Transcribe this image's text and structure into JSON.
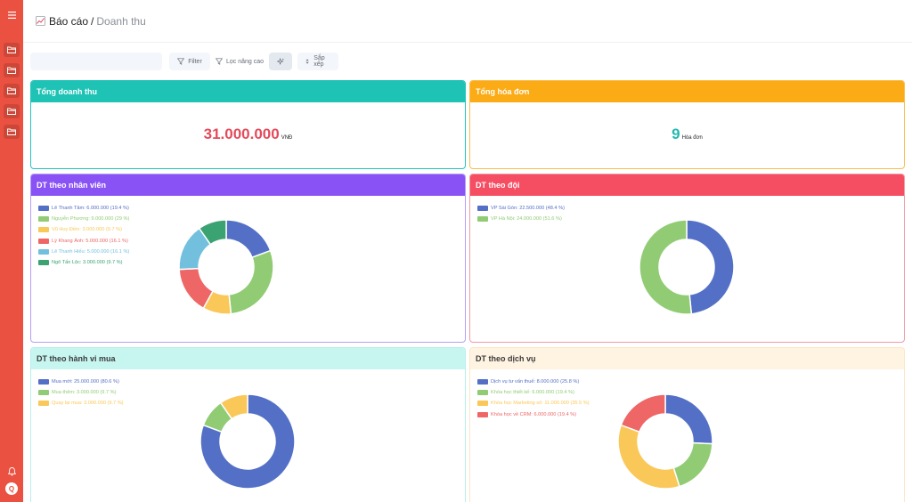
{
  "header": {
    "breadcrumb_root": "Báo cáo",
    "breadcrumb_sep": "/",
    "breadcrumb_current": "Doanh thu"
  },
  "toolbar": {
    "search_value": "",
    "search_placeholder": "",
    "filter_label": "Filter",
    "advanced_filter_label": "Lọc nâng cao",
    "sort_label": "Sắp xếp"
  },
  "sidebar": {
    "folder_count": 5,
    "avatar_letter": "Q"
  },
  "cards": {
    "total_revenue": {
      "title": "Tổng doanh thu",
      "value": "31.000.000",
      "unit": "VNĐ"
    },
    "total_invoices": {
      "title": "Tổng hóa đơn",
      "value": "9",
      "unit": "Hóa đơn"
    },
    "by_staff": {
      "title": "DT theo nhân viên"
    },
    "by_team": {
      "title": "DT theo đội"
    },
    "by_behavior": {
      "title": "DT theo hành vi mua"
    },
    "by_service": {
      "title": "DT theo dịch vụ"
    }
  },
  "colors": {
    "sidebar": "#ea5141",
    "teal": "#1fc3b5",
    "orange": "#fbab15",
    "purple": "#8952f5",
    "red": "#f54d62"
  },
  "chart_data": [
    {
      "id": "by_staff",
      "type": "pie",
      "categories": [
        "Lê Thanh Tâm",
        "Nguyễn Phương",
        "Vũ Huy Điền",
        "Lý Khang Ánh",
        "Lê Thanh Hiếu",
        "Ngô Tấn Lộc"
      ],
      "values": [
        6000000,
        9000000,
        3000000,
        5000000,
        5000000,
        3000000
      ],
      "labels": [
        "Lê Thanh Tâm: 6.000.000 (19.4 %)",
        "Nguyễn Phương: 9.000.000 (29 %)",
        "Vũ Huy Điền: 3.000.000 (9.7 %)",
        "Lý Khang Ánh: 5.000.000 (16.1 %)",
        "Lê Thanh Hiếu: 5.000.000 (16.1 %)",
        "Ngô Tấn Lộc: 3.000.000 (9.7 %)"
      ],
      "colors": [
        "#5470c6",
        "#91cc75",
        "#fac858",
        "#ee6666",
        "#73c0de",
        "#3ba272"
      ],
      "legend_position": "top-left"
    },
    {
      "id": "by_team",
      "type": "pie",
      "categories": [
        "VP Sài Gòn",
        "VP Hà Nội"
      ],
      "values": [
        22500000,
        24000000
      ],
      "labels": [
        "VP Sài Gòn: 22.500.000 (48.4 %)",
        "VP Hà Nội: 24.000.000 (51.6 %)"
      ],
      "colors": [
        "#5470c6",
        "#91cc75"
      ],
      "legend_position": "top-left"
    },
    {
      "id": "by_behavior",
      "type": "pie",
      "categories": [
        "Mua mới",
        "Mua thêm",
        "Quay lại mua"
      ],
      "values": [
        25000000,
        3000000,
        3000000
      ],
      "labels": [
        "Mua mới: 25.000.000 (80.6 %)",
        "Mua thêm: 3.000.000 (9.7 %)",
        "Quay lại mua: 3.000.000 (9.7 %)"
      ],
      "colors": [
        "#5470c6",
        "#91cc75",
        "#fac858"
      ],
      "legend_position": "top-left"
    },
    {
      "id": "by_service",
      "type": "pie",
      "categories": [
        "Dịch vụ tư vấn thuế",
        "Khóa học thiết kế",
        "Khóa học Marketing số",
        "Khóa học về CRM"
      ],
      "values": [
        8000000,
        6000000,
        11000000,
        6000000
      ],
      "labels": [
        "Dịch vụ tư vấn thuế: 8.000.000 (25.8 %)",
        "Khóa học thiết kế: 6.000.000 (19.4 %)",
        "Khóa học Marketing số: 11.000.000 (35.5 %)",
        "Khóa học về CRM: 6.000.000 (19.4 %)"
      ],
      "colors": [
        "#5470c6",
        "#91cc75",
        "#fac858",
        "#ee6666"
      ],
      "legend_position": "top-left"
    }
  ]
}
